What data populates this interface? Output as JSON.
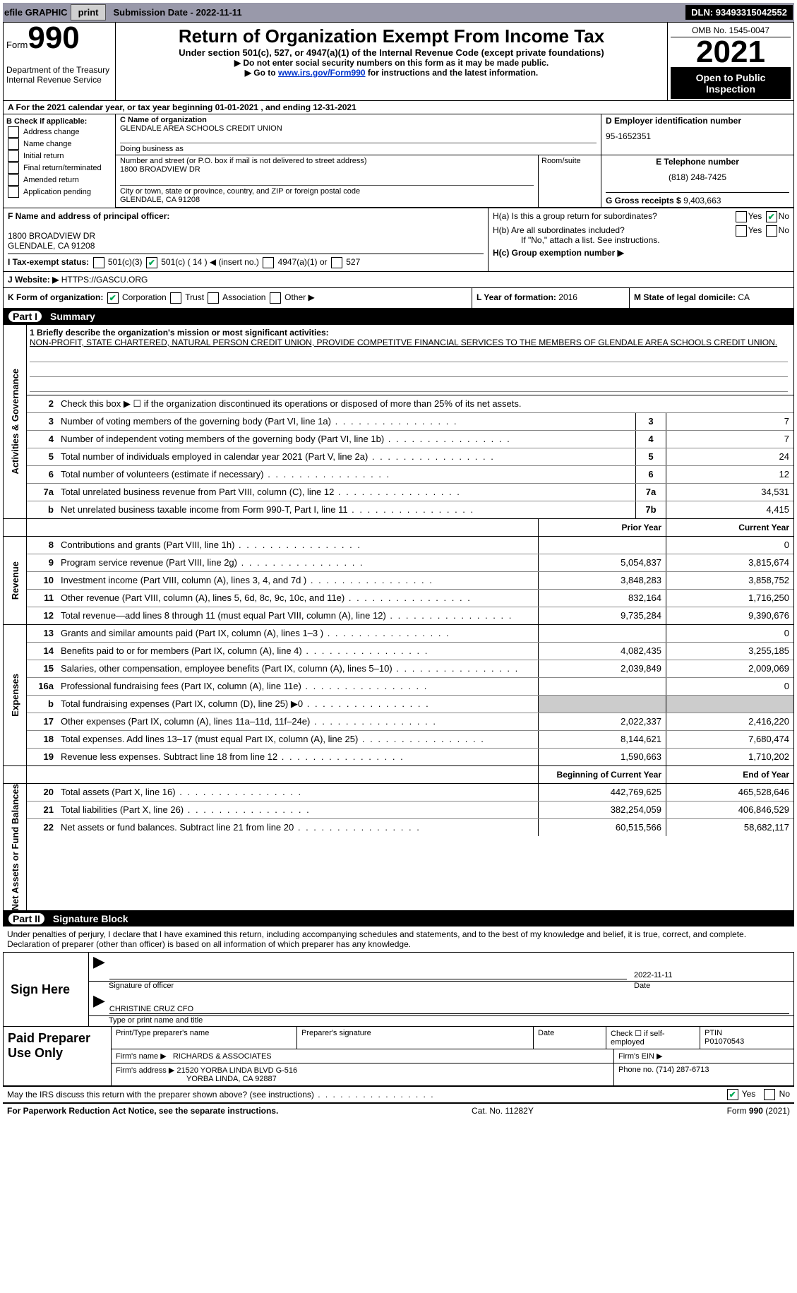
{
  "topbar": {
    "efile_label": "efile GRAPHIC",
    "print_btn": "print",
    "sub_date_label": "Submission Date - 2022-11-11",
    "dln": "DLN: 93493315042552"
  },
  "header": {
    "form_word": "Form",
    "form_num": "990",
    "dept": "Department of the Treasury",
    "irs": "Internal Revenue Service",
    "title": "Return of Organization Exempt From Income Tax",
    "subtitle": "Under section 501(c), 527, or 4947(a)(1) of the Internal Revenue Code (except private foundations)",
    "instr1": "▶ Do not enter social security numbers on this form as it may be made public.",
    "instr2_pre": "▶ Go to ",
    "instr2_link": "www.irs.gov/Form990",
    "instr2_post": " for instructions and the latest information.",
    "omb": "OMB No. 1545-0047",
    "year": "2021",
    "open": "Open to Public Inspection"
  },
  "row_a": "A For the 2021 calendar year, or tax year beginning 01-01-2021   , and ending 12-31-2021",
  "section_b": {
    "label": "B Check if applicable:",
    "items": [
      "Address change",
      "Name change",
      "Initial return",
      "Final return/terminated",
      "Amended return",
      "Application pending"
    ]
  },
  "section_c": {
    "name_label": "C Name of organization",
    "name": "GLENDALE AREA SCHOOLS CREDIT UNION",
    "dba_label": "Doing business as",
    "dba": "",
    "addr_label": "Number and street (or P.O. box if mail is not delivered to street address)",
    "addr": "1800 BROADVIEW DR",
    "room_label": "Room/suite",
    "city_label": "City or town, state or province, country, and ZIP or foreign postal code",
    "city": "GLENDALE, CA  91208"
  },
  "section_d": {
    "label": "D Employer identification number",
    "value": "95-1652351"
  },
  "section_e": {
    "label": "E Telephone number",
    "value": "(818) 248-7425"
  },
  "section_g": {
    "label": "G Gross receipts $",
    "value": "9,403,663"
  },
  "section_f": {
    "label": "F  Name and address of principal officer:",
    "line1": "",
    "line2": "1800 BROADVIEW DR",
    "line3": "GLENDALE, CA  91208"
  },
  "section_h": {
    "ha": "H(a)  Is this a group return for subordinates?",
    "hb": "H(b)  Are all subordinates included?",
    "hb_note": "If \"No,\" attach a list. See instructions.",
    "hc": "H(c)  Group exemption number ▶",
    "yes": "Yes",
    "no": "No"
  },
  "section_i": {
    "label": "I   Tax-exempt status:",
    "o1": "501(c)(3)",
    "o2": "501(c) ( 14 ) ◀ (insert no.)",
    "o3": "4947(a)(1) or",
    "o4": "527"
  },
  "section_j": {
    "label": "J   Website: ▶",
    "value": "HTTPS://GASCU.ORG"
  },
  "section_k": {
    "label": "K Form of organization:",
    "corp": "Corporation",
    "trust": "Trust",
    "assoc": "Association",
    "other": "Other ▶"
  },
  "section_l": {
    "label": "L Year of formation:",
    "value": "2016"
  },
  "section_m": {
    "label": "M State of legal domicile:",
    "value": "CA"
  },
  "parts": {
    "p1": "Part I",
    "p1_title": "Summary",
    "p2": "Part II",
    "p2_title": "Signature Block"
  },
  "sides": {
    "ag": "Activities & Governance",
    "rev": "Revenue",
    "exp": "Expenses",
    "net": "Net Assets or Fund Balances"
  },
  "mission": {
    "q1": "1  Briefly describe the organization's mission or most significant activities:",
    "text": "NON-PROFIT, STATE CHARTERED, NATURAL PERSON CREDIT UNION, PROVIDE COMPETITVE FINANCIAL SERVICES TO THE MEMBERS OF GLENDALE AREA SCHOOLS CREDIT UNION.",
    "q2": "Check this box ▶ ☐ if the organization discontinued its operations or disposed of more than 25% of its net assets."
  },
  "cols": {
    "prior": "Prior Year",
    "current": "Current Year",
    "begin": "Beginning of Current Year",
    "end": "End of Year"
  },
  "lines": [
    {
      "n": "3",
      "label": "Number of voting members of the governing body (Part VI, line 1a)",
      "box": "3",
      "v2": "7"
    },
    {
      "n": "4",
      "label": "Number of independent voting members of the governing body (Part VI, line 1b)",
      "box": "4",
      "v2": "7"
    },
    {
      "n": "5",
      "label": "Total number of individuals employed in calendar year 2021 (Part V, line 2a)",
      "box": "5",
      "v2": "24"
    },
    {
      "n": "6",
      "label": "Total number of volunteers (estimate if necessary)",
      "box": "6",
      "v2": "12"
    },
    {
      "n": "7a",
      "label": "Total unrelated business revenue from Part VIII, column (C), line 12",
      "box": "7a",
      "v2": "34,531"
    },
    {
      "n": "b",
      "label": "Net unrelated business taxable income from Form 990-T, Part I, line 11",
      "box": "7b",
      "v2": "4,415"
    }
  ],
  "revenue": [
    {
      "n": "8",
      "label": "Contributions and grants (Part VIII, line 1h)",
      "v1": "",
      "v2": "0"
    },
    {
      "n": "9",
      "label": "Program service revenue (Part VIII, line 2g)",
      "v1": "5,054,837",
      "v2": "3,815,674"
    },
    {
      "n": "10",
      "label": "Investment income (Part VIII, column (A), lines 3, 4, and 7d )",
      "v1": "3,848,283",
      "v2": "3,858,752"
    },
    {
      "n": "11",
      "label": "Other revenue (Part VIII, column (A), lines 5, 6d, 8c, 9c, 10c, and 11e)",
      "v1": "832,164",
      "v2": "1,716,250"
    },
    {
      "n": "12",
      "label": "Total revenue—add lines 8 through 11 (must equal Part VIII, column (A), line 12)",
      "v1": "9,735,284",
      "v2": "9,390,676"
    }
  ],
  "expenses": [
    {
      "n": "13",
      "label": "Grants and similar amounts paid (Part IX, column (A), lines 1–3 )",
      "v1": "",
      "v2": "0"
    },
    {
      "n": "14",
      "label": "Benefits paid to or for members (Part IX, column (A), line 4)",
      "v1": "4,082,435",
      "v2": "3,255,185"
    },
    {
      "n": "15",
      "label": "Salaries, other compensation, employee benefits (Part IX, column (A), lines 5–10)",
      "v1": "2,039,849",
      "v2": "2,009,069"
    },
    {
      "n": "16a",
      "label": "Professional fundraising fees (Part IX, column (A), line 11e)",
      "v1": "",
      "v2": "0"
    },
    {
      "n": "b",
      "label": "Total fundraising expenses (Part IX, column (D), line 25) ▶0",
      "v1": "shade",
      "v2": "shade"
    },
    {
      "n": "17",
      "label": "Other expenses (Part IX, column (A), lines 11a–11d, 11f–24e)",
      "v1": "2,022,337",
      "v2": "2,416,220"
    },
    {
      "n": "18",
      "label": "Total expenses. Add lines 13–17 (must equal Part IX, column (A), line 25)",
      "v1": "8,144,621",
      "v2": "7,680,474"
    },
    {
      "n": "19",
      "label": "Revenue less expenses. Subtract line 18 from line 12",
      "v1": "1,590,663",
      "v2": "1,710,202"
    }
  ],
  "netassets": [
    {
      "n": "20",
      "label": "Total assets (Part X, line 16)",
      "v1": "442,769,625",
      "v2": "465,528,646"
    },
    {
      "n": "21",
      "label": "Total liabilities (Part X, line 26)",
      "v1": "382,254,059",
      "v2": "406,846,529"
    },
    {
      "n": "22",
      "label": "Net assets or fund balances. Subtract line 21 from line 20",
      "v1": "60,515,566",
      "v2": "58,682,117"
    }
  ],
  "sig": {
    "decl": "Under penalties of perjury, I declare that I have examined this return, including accompanying schedules and statements, and to the best of my knowledge and belief, it is true, correct, and complete. Declaration of preparer (other than officer) is based on all information of which preparer has any knowledge.",
    "sign_here": "Sign Here",
    "sig_officer": "Signature of officer",
    "date_label": "Date",
    "date": "2022-11-11",
    "name": "CHRISTINE CRUZ  CFO",
    "type_label": "Type or print name and title"
  },
  "prep": {
    "label": "Paid Preparer Use Only",
    "h1": "Print/Type preparer's name",
    "h2": "Preparer's signature",
    "h3": "Date",
    "h4": "Check ☐ if self-employed",
    "h5_l": "PTIN",
    "h5_v": "P01070543",
    "firm_l": "Firm's name   ▶",
    "firm_v": "RICHARDS & ASSOCIATES",
    "ein_l": "Firm's EIN ▶",
    "ein_v": "",
    "addr_l": "Firm's address ▶",
    "addr_v1": "21520 YORBA LINDA BLVD G-516",
    "addr_v2": "YORBA LINDA, CA  92887",
    "phone_l": "Phone no.",
    "phone_v": "(714) 287-6713"
  },
  "footer": {
    "q": "May the IRS discuss this return with the preparer shown above? (see instructions)",
    "yes": "Yes",
    "no": "No",
    "pra": "For Paperwork Reduction Act Notice, see the separate instructions.",
    "cat": "Cat. No. 11282Y",
    "form": "Form 990 (2021)"
  }
}
